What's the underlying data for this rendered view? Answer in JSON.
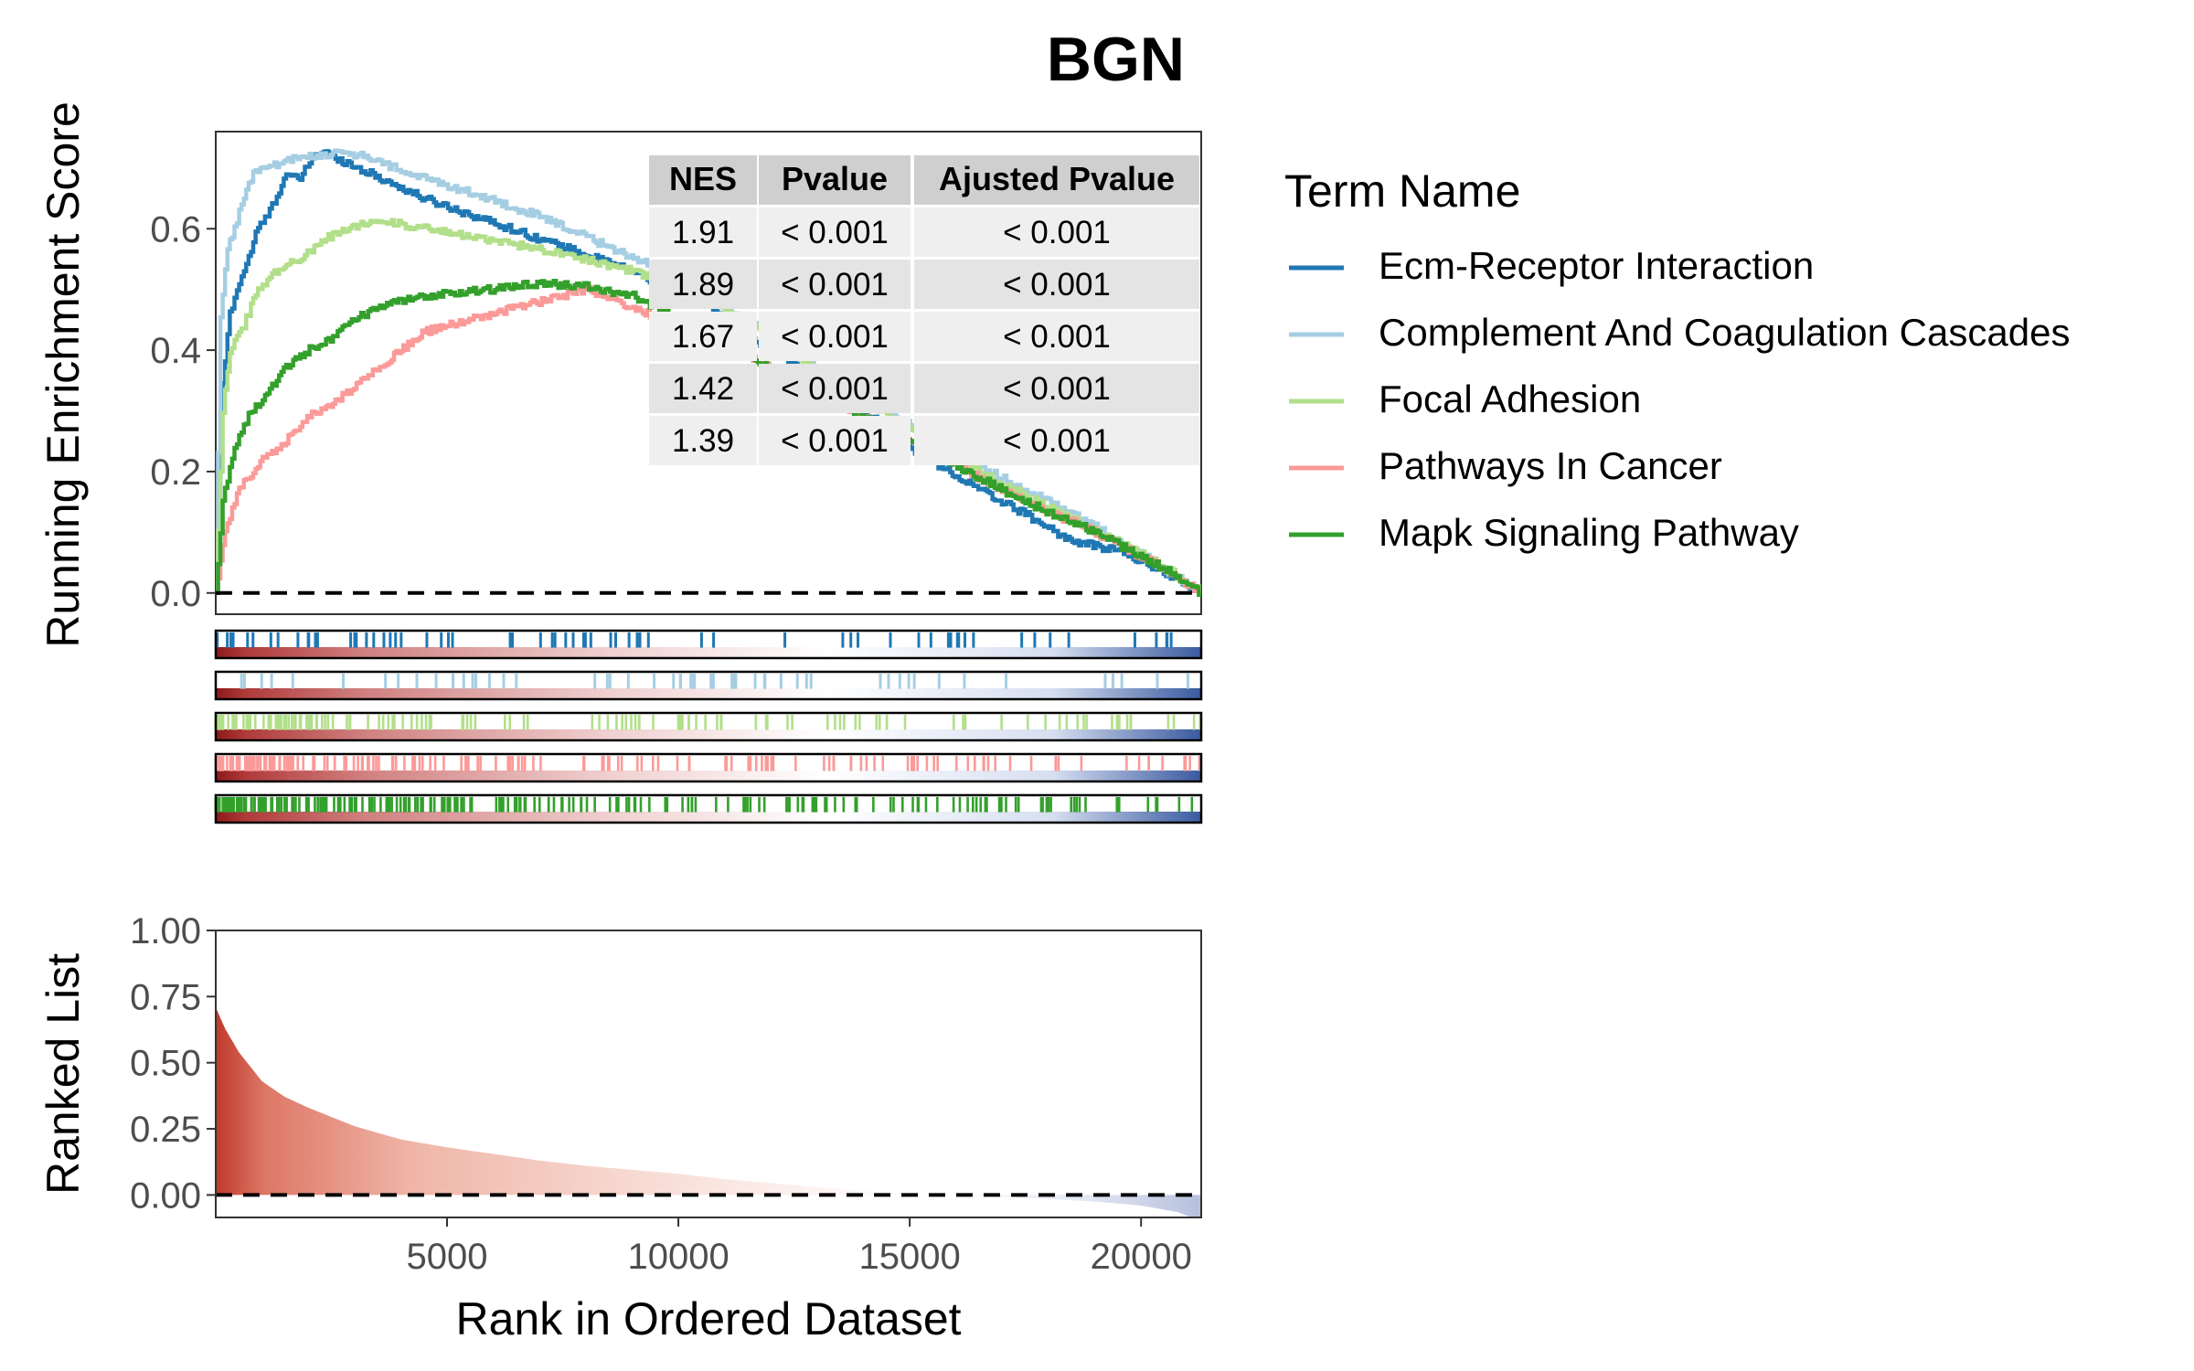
{
  "chart_data": {
    "type": "line",
    "title": "BGN",
    "top_panel": {
      "ylabel": "Running Enrichment Score",
      "ylim": [
        -0.035,
        0.76
      ],
      "yticks": [
        0.0,
        0.2,
        0.4,
        0.6
      ],
      "ytick_labels": [
        "0.0",
        "0.2",
        "0.4",
        "0.6"
      ],
      "reference_line": 0
    },
    "bottom_panel": {
      "ylabel": "Ranked List",
      "xlabel": "Rank in Ordered Dataset",
      "ylim": [
        -0.085,
        1.0
      ],
      "yticks": [
        0.0,
        0.25,
        0.5,
        0.75,
        1.0
      ],
      "ytick_labels": [
        "0.00",
        "0.25",
        "0.50",
        "0.75",
        "1.00"
      ],
      "reference_line": 0
    },
    "x": {
      "xlim": [
        1,
        21300
      ],
      "xticks": [
        5000,
        10000,
        15000,
        20000
      ],
      "xtick_labels": [
        "5000",
        "10000",
        "15000",
        "20000"
      ]
    },
    "legend": {
      "title": "Term Name",
      "placement": "right"
    },
    "series": [
      {
        "name": "Ecm-Receptor Interaction",
        "color": "#1F78B4",
        "points": [
          [
            0,
            0
          ],
          [
            100,
            0.3
          ],
          [
            300,
            0.46
          ],
          [
            500,
            0.51
          ],
          [
            700,
            0.55
          ],
          [
            900,
            0.6
          ],
          [
            1100,
            0.62
          ],
          [
            1300,
            0.65
          ],
          [
            1500,
            0.69
          ],
          [
            1800,
            0.68
          ],
          [
            2100,
            0.72
          ],
          [
            2400,
            0.725
          ],
          [
            2800,
            0.71
          ],
          [
            3500,
            0.685
          ],
          [
            4500,
            0.65
          ],
          [
            6000,
            0.61
          ],
          [
            7500,
            0.57
          ],
          [
            9000,
            0.53
          ],
          [
            10500,
            0.48
          ],
          [
            12000,
            0.4
          ],
          [
            13500,
            0.33
          ],
          [
            15000,
            0.24
          ],
          [
            16500,
            0.17
          ],
          [
            17500,
            0.13
          ],
          [
            18500,
            0.085
          ],
          [
            19500,
            0.07
          ],
          [
            20500,
            0.035
          ],
          [
            21300,
            0
          ]
        ]
      },
      {
        "name": "Complement And Coagulation Cascades",
        "color": "#A6CEE3",
        "points": [
          [
            0,
            0
          ],
          [
            100,
            0.45
          ],
          [
            250,
            0.57
          ],
          [
            400,
            0.6
          ],
          [
            600,
            0.65
          ],
          [
            800,
            0.69
          ],
          [
            1000,
            0.7
          ],
          [
            1300,
            0.705
          ],
          [
            1700,
            0.715
          ],
          [
            2100,
            0.72
          ],
          [
            2600,
            0.725
          ],
          [
            3200,
            0.72
          ],
          [
            4200,
            0.69
          ],
          [
            5500,
            0.66
          ],
          [
            7000,
            0.62
          ],
          [
            8500,
            0.57
          ],
          [
            10000,
            0.52
          ],
          [
            11500,
            0.45
          ],
          [
            13000,
            0.37
          ],
          [
            14500,
            0.3
          ],
          [
            16000,
            0.23
          ],
          [
            17500,
            0.17
          ],
          [
            19000,
            0.11
          ],
          [
            20500,
            0.04
          ],
          [
            21300,
            0
          ]
        ]
      },
      {
        "name": "Focal Adhesion",
        "color": "#B2DF8A",
        "points": [
          [
            0,
            0
          ],
          [
            150,
            0.3
          ],
          [
            300,
            0.4
          ],
          [
            600,
            0.44
          ],
          [
            900,
            0.5
          ],
          [
            1300,
            0.53
          ],
          [
            1800,
            0.55
          ],
          [
            2300,
            0.58
          ],
          [
            2800,
            0.6
          ],
          [
            3500,
            0.615
          ],
          [
            4500,
            0.6
          ],
          [
            6000,
            0.58
          ],
          [
            7500,
            0.56
          ],
          [
            9000,
            0.53
          ],
          [
            10500,
            0.49
          ],
          [
            12000,
            0.42
          ],
          [
            13500,
            0.34
          ],
          [
            15000,
            0.27
          ],
          [
            16500,
            0.2
          ],
          [
            18000,
            0.14
          ],
          [
            19500,
            0.085
          ],
          [
            20700,
            0.035
          ],
          [
            21300,
            0
          ]
        ]
      },
      {
        "name": "Pathways In Cancer",
        "color": "#FB9A99",
        "points": [
          [
            0,
            0
          ],
          [
            200,
            0.1
          ],
          [
            500,
            0.17
          ],
          [
            1000,
            0.22
          ],
          [
            1500,
            0.25
          ],
          [
            2000,
            0.29
          ],
          [
            2500,
            0.31
          ],
          [
            3000,
            0.34
          ],
          [
            3500,
            0.37
          ],
          [
            4000,
            0.4
          ],
          [
            4500,
            0.43
          ],
          [
            5000,
            0.44
          ],
          [
            6000,
            0.46
          ],
          [
            7000,
            0.48
          ],
          [
            8000,
            0.5
          ],
          [
            9000,
            0.47
          ],
          [
            10000,
            0.44
          ],
          [
            11500,
            0.39
          ],
          [
            13000,
            0.33
          ],
          [
            14500,
            0.27
          ],
          [
            16000,
            0.21
          ],
          [
            17500,
            0.15
          ],
          [
            19000,
            0.1
          ],
          [
            20500,
            0.04
          ],
          [
            21300,
            0
          ]
        ]
      },
      {
        "name": "Mapk Signaling Pathway",
        "color": "#33A02C",
        "points": [
          [
            0,
            0
          ],
          [
            150,
            0.15
          ],
          [
            400,
            0.24
          ],
          [
            700,
            0.29
          ],
          [
            1000,
            0.32
          ],
          [
            1500,
            0.37
          ],
          [
            2000,
            0.4
          ],
          [
            2500,
            0.42
          ],
          [
            3000,
            0.45
          ],
          [
            3500,
            0.47
          ],
          [
            4000,
            0.48
          ],
          [
            5000,
            0.495
          ],
          [
            6000,
            0.5
          ],
          [
            7000,
            0.51
          ],
          [
            8000,
            0.505
          ],
          [
            9000,
            0.49
          ],
          [
            10000,
            0.45
          ],
          [
            11500,
            0.39
          ],
          [
            13000,
            0.33
          ],
          [
            14500,
            0.27
          ],
          [
            16000,
            0.21
          ],
          [
            17500,
            0.15
          ],
          [
            19000,
            0.1
          ],
          [
            20500,
            0.04
          ],
          [
            21300,
            0
          ]
        ]
      }
    ],
    "ranked_list": {
      "points": [
        [
          0,
          0.71
        ],
        [
          200,
          0.63
        ],
        [
          500,
          0.54
        ],
        [
          1000,
          0.43
        ],
        [
          1500,
          0.37
        ],
        [
          2000,
          0.33
        ],
        [
          3000,
          0.26
        ],
        [
          4000,
          0.21
        ],
        [
          5000,
          0.18
        ],
        [
          6000,
          0.155
        ],
        [
          7000,
          0.13
        ],
        [
          8000,
          0.11
        ],
        [
          9000,
          0.095
        ],
        [
          10000,
          0.08
        ],
        [
          11000,
          0.06
        ],
        [
          12000,
          0.045
        ],
        [
          13000,
          0.03
        ],
        [
          14000,
          0.015
        ],
        [
          15000,
          0.005
        ],
        [
          16000,
          -0.003
        ],
        [
          17000,
          -0.008
        ],
        [
          18000,
          -0.015
        ],
        [
          19000,
          -0.025
        ],
        [
          20000,
          -0.04
        ],
        [
          20800,
          -0.065
        ],
        [
          21300,
          -0.1
        ]
      ],
      "positive_color": "#C0392B",
      "negative_color": "#2B4C9B"
    },
    "table": {
      "headers": [
        "NES",
        "Pvalue",
        "Ajusted Pvalue"
      ],
      "rows": [
        [
          "1.91",
          "< 0.001",
          "< 0.001"
        ],
        [
          "1.89",
          "< 0.001",
          "< 0.001"
        ],
        [
          "1.67",
          "< 0.001",
          "< 0.001"
        ],
        [
          "1.42",
          "< 0.001",
          "< 0.001"
        ],
        [
          "1.39",
          "< 0.001",
          "< 0.001"
        ]
      ]
    }
  }
}
